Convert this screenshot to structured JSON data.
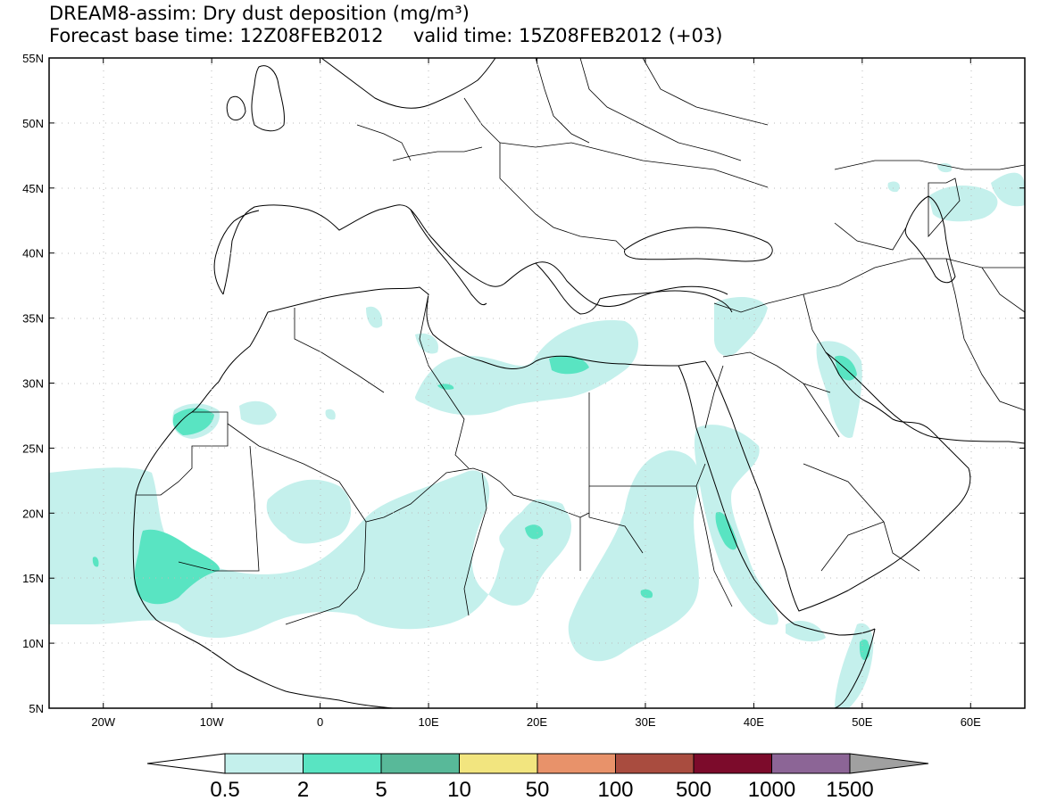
{
  "title": {
    "line1": "DREAM8-assim: Dry dust deposition (mg/m³)",
    "forecast_base_label": "Forecast base time: 12Z08FEB2012",
    "valid_label": "valid time: 15Z08FEB2012 (+03)"
  },
  "map": {
    "lon_range": [
      -25,
      65
    ],
    "lat_range": [
      5,
      55
    ],
    "lat_ticks": [
      "55N",
      "50N",
      "45N",
      "40N",
      "35N",
      "30N",
      "25N",
      "20N",
      "15N",
      "10N",
      "5N"
    ],
    "lon_ticks": [
      "20W",
      "10W",
      "0",
      "10E",
      "20E",
      "30E",
      "40E",
      "50E",
      "60E"
    ],
    "grid": "dotted",
    "colors": {
      "ocean": "#ffffff",
      "coast": "#000000"
    }
  },
  "colorbar": {
    "thresholds": [
      "0.5",
      "2",
      "5",
      "10",
      "50",
      "100",
      "500",
      "1000",
      "1500"
    ],
    "colors": [
      "#c4f0ec",
      "#59e4c2",
      "#58b999",
      "#f2e57f",
      "#e8926a",
      "#a94c3f",
      "#7c0b2b",
      "#8c6596",
      "#a0a0a0"
    ]
  }
}
